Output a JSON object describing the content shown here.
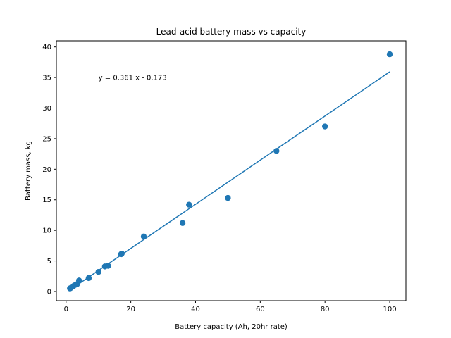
{
  "chart_data": {
    "type": "scatter",
    "title": "Lead-acid battery mass vs capacity",
    "xlabel": "Battery capacity (Ah, 20hr rate)",
    "ylabel": "Battery mass, kg",
    "xlim": [
      -3,
      105
    ],
    "ylim": [
      -1.5,
      41
    ],
    "xticks": [
      0,
      20,
      40,
      60,
      80,
      100
    ],
    "yticks": [
      0,
      5,
      10,
      15,
      20,
      25,
      30,
      35,
      40
    ],
    "grid": false,
    "annotation": {
      "text": "y = 0.361 x - 0.173",
      "x": 10,
      "y": 35
    },
    "series": [
      {
        "type": "scatter",
        "color": "#1f77b4",
        "points": [
          {
            "x": 1.2,
            "y": 0.5
          },
          {
            "x": 1.5,
            "y": 0.6
          },
          {
            "x": 2.3,
            "y": 0.9
          },
          {
            "x": 2.9,
            "y": 1.1
          },
          {
            "x": 3.4,
            "y": 1.2
          },
          {
            "x": 4.0,
            "y": 1.8
          },
          {
            "x": 7.0,
            "y": 2.2
          },
          {
            "x": 10.0,
            "y": 3.2
          },
          {
            "x": 12.0,
            "y": 4.1
          },
          {
            "x": 13.0,
            "y": 4.2
          },
          {
            "x": 17.0,
            "y": 6.1
          },
          {
            "x": 17.2,
            "y": 6.2
          },
          {
            "x": 24.0,
            "y": 9.0
          },
          {
            "x": 36.0,
            "y": 11.2
          },
          {
            "x": 38.0,
            "y": 14.2
          },
          {
            "x": 50.0,
            "y": 15.3
          },
          {
            "x": 65.0,
            "y": 23.0
          },
          {
            "x": 80.0,
            "y": 27.0
          },
          {
            "x": 100.0,
            "y": 38.8
          }
        ]
      },
      {
        "type": "line",
        "color": "#1f77b4",
        "slope": 0.361,
        "intercept": -0.173,
        "x_range": [
          1.2,
          100
        ]
      }
    ]
  }
}
